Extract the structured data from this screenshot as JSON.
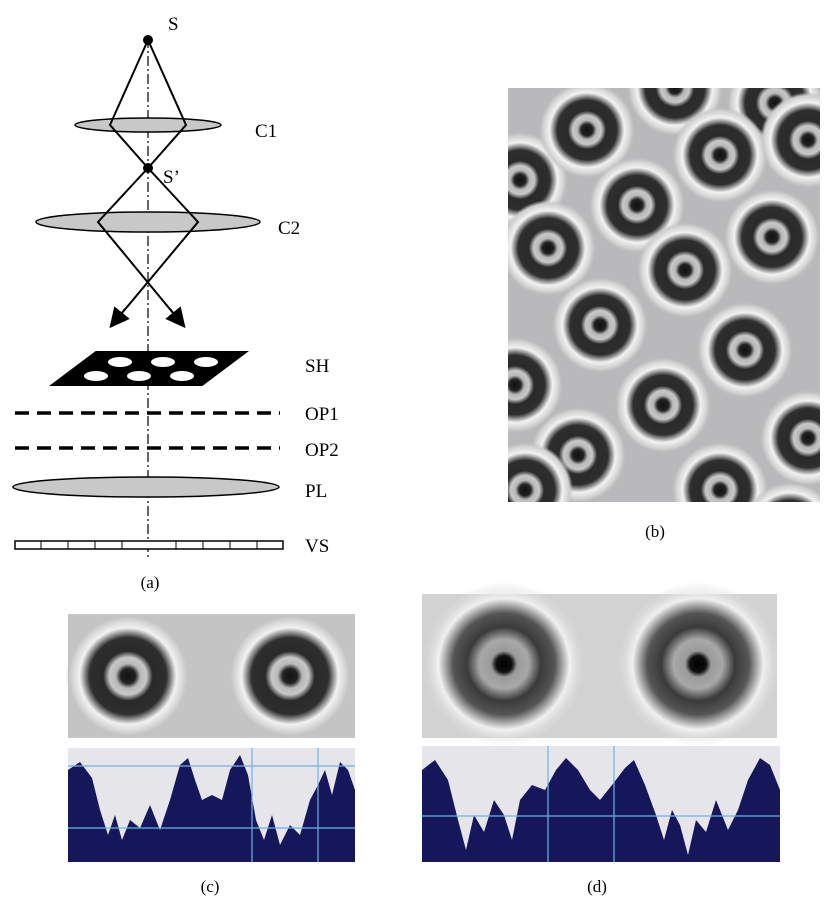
{
  "diagram": {
    "source": "S",
    "condenser_1": "C1",
    "source_image": "S’",
    "condenser_2": "C2",
    "screen_holes": "SH",
    "object_plane_1": "OP1",
    "object_plane_2": "OP2",
    "projection_lens": "PL",
    "viewing_screen": "VS"
  },
  "panels": {
    "a": "(a)",
    "b": "(b)",
    "c": "(c)",
    "d": "(d)"
  }
}
